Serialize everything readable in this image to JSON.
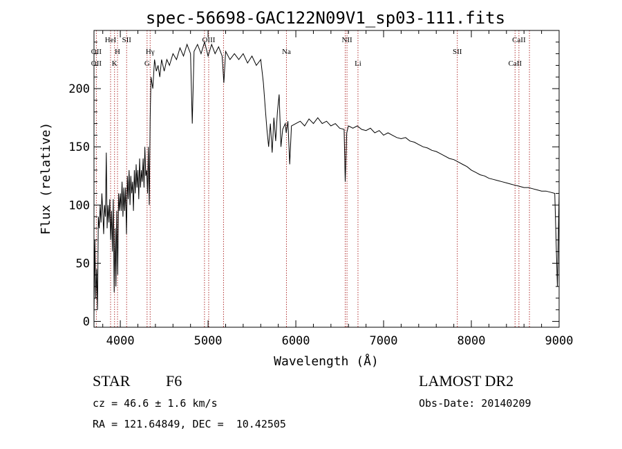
{
  "chart_data": {
    "type": "line",
    "title": "spec-56698-GAC122N09V1_sp03-111.fits",
    "xlabel": "Wavelength (Å)",
    "ylabel": "Flux (relative)",
    "xlim": [
      3700,
      9000
    ],
    "ylim": [
      -5,
      250
    ],
    "xticks": [
      4000,
      5000,
      6000,
      7000,
      8000,
      9000
    ],
    "yticks": [
      0,
      50,
      100,
      150,
      200
    ],
    "grid": false,
    "series": [
      {
        "points": [
          [
            3700,
            5
          ],
          [
            3710,
            70
          ],
          [
            3720,
            20
          ],
          [
            3730,
            45
          ],
          [
            3740,
            10
          ],
          [
            3750,
            90
          ],
          [
            3760,
            80
          ],
          [
            3770,
            100
          ],
          [
            3780,
            85
          ],
          [
            3790,
            110
          ],
          [
            3800,
            95
          ],
          [
            3810,
            75
          ],
          [
            3820,
            100
          ],
          [
            3830,
            90
          ],
          [
            3840,
            145
          ],
          [
            3850,
            80
          ],
          [
            3860,
            100
          ],
          [
            3870,
            85
          ],
          [
            3880,
            105
          ],
          [
            3890,
            70
          ],
          [
            3900,
            95
          ],
          [
            3910,
            60
          ],
          [
            3920,
            105
          ],
          [
            3930,
            25
          ],
          [
            3940,
            80
          ],
          [
            3950,
            30
          ],
          [
            3960,
            95
          ],
          [
            3970,
            40
          ],
          [
            3980,
            110
          ],
          [
            3990,
            95
          ],
          [
            4000,
            110
          ],
          [
            4010,
            95
          ],
          [
            4020,
            120
          ],
          [
            4030,
            90
          ],
          [
            4040,
            115
          ],
          [
            4050,
            95
          ],
          [
            4060,
            115
          ],
          [
            4070,
            75
          ],
          [
            4080,
            125
          ],
          [
            4090,
            105
          ],
          [
            4100,
            130
          ],
          [
            4110,
            100
          ],
          [
            4120,
            125
          ],
          [
            4130,
            110
          ],
          [
            4140,
            120
          ],
          [
            4150,
            95
          ],
          [
            4160,
            130
          ],
          [
            4170,
            110
          ],
          [
            4180,
            135
          ],
          [
            4190,
            115
          ],
          [
            4200,
            130
          ],
          [
            4210,
            105
          ],
          [
            4220,
            140
          ],
          [
            4230,
            115
          ],
          [
            4240,
            130
          ],
          [
            4250,
            120
          ],
          [
            4260,
            140
          ],
          [
            4270,
            115
          ],
          [
            4280,
            150
          ],
          [
            4290,
            125
          ],
          [
            4300,
            130
          ],
          [
            4310,
            110
          ],
          [
            4320,
            150
          ],
          [
            4330,
            100
          ],
          [
            4340,
            175
          ],
          [
            4350,
            210
          ],
          [
            4370,
            200
          ],
          [
            4390,
            225
          ],
          [
            4410,
            215
          ],
          [
            4430,
            220
          ],
          [
            4450,
            210
          ],
          [
            4470,
            225
          ],
          [
            4500,
            215
          ],
          [
            4530,
            225
          ],
          [
            4560,
            220
          ],
          [
            4600,
            230
          ],
          [
            4640,
            225
          ],
          [
            4680,
            235
          ],
          [
            4720,
            228
          ],
          [
            4760,
            238
          ],
          [
            4800,
            230
          ],
          [
            4820,
            170
          ],
          [
            4840,
            232
          ],
          [
            4880,
            238
          ],
          [
            4920,
            230
          ],
          [
            4960,
            240
          ],
          [
            5000,
            228
          ],
          [
            5040,
            238
          ],
          [
            5080,
            230
          ],
          [
            5120,
            236
          ],
          [
            5160,
            228
          ],
          [
            5180,
            205
          ],
          [
            5200,
            232
          ],
          [
            5250,
            225
          ],
          [
            5300,
            230
          ],
          [
            5350,
            225
          ],
          [
            5400,
            230
          ],
          [
            5450,
            222
          ],
          [
            5500,
            228
          ],
          [
            5550,
            220
          ],
          [
            5600,
            225
          ],
          [
            5630,
            205
          ],
          [
            5650,
            185
          ],
          [
            5670,
            165
          ],
          [
            5690,
            150
          ],
          [
            5710,
            170
          ],
          [
            5730,
            145
          ],
          [
            5750,
            175
          ],
          [
            5770,
            155
          ],
          [
            5790,
            180
          ],
          [
            5810,
            195
          ],
          [
            5830,
            150
          ],
          [
            5850,
            165
          ],
          [
            5880,
            170
          ],
          [
            5890,
            162
          ],
          [
            5910,
            172
          ],
          [
            5930,
            135
          ],
          [
            5950,
            168
          ],
          [
            6000,
            170
          ],
          [
            6050,
            172
          ],
          [
            6100,
            168
          ],
          [
            6150,
            174
          ],
          [
            6200,
            170
          ],
          [
            6250,
            175
          ],
          [
            6300,
            170
          ],
          [
            6350,
            172
          ],
          [
            6400,
            168
          ],
          [
            6450,
            170
          ],
          [
            6500,
            166
          ],
          [
            6550,
            165
          ],
          [
            6563,
            120
          ],
          [
            6580,
            162
          ],
          [
            6600,
            168
          ],
          [
            6650,
            166
          ],
          [
            6700,
            168
          ],
          [
            6750,
            165
          ],
          [
            6800,
            164
          ],
          [
            6850,
            166
          ],
          [
            6900,
            162
          ],
          [
            6950,
            164
          ],
          [
            7000,
            160
          ],
          [
            7050,
            162
          ],
          [
            7100,
            160
          ],
          [
            7150,
            158
          ],
          [
            7200,
            157
          ],
          [
            7250,
            158
          ],
          [
            7300,
            155
          ],
          [
            7350,
            154
          ],
          [
            7400,
            152
          ],
          [
            7450,
            150
          ],
          [
            7500,
            149
          ],
          [
            7550,
            147
          ],
          [
            7600,
            146
          ],
          [
            7650,
            144
          ],
          [
            7700,
            142
          ],
          [
            7750,
            140
          ],
          [
            7800,
            139
          ],
          [
            7850,
            137
          ],
          [
            7900,
            135
          ],
          [
            7950,
            133
          ],
          [
            8000,
            130
          ],
          [
            8050,
            128
          ],
          [
            8100,
            126
          ],
          [
            8150,
            125
          ],
          [
            8200,
            123
          ],
          [
            8250,
            122
          ],
          [
            8300,
            121
          ],
          [
            8350,
            120
          ],
          [
            8400,
            119
          ],
          [
            8450,
            118
          ],
          [
            8500,
            117
          ],
          [
            8550,
            116
          ],
          [
            8600,
            115
          ],
          [
            8650,
            115
          ],
          [
            8700,
            114
          ],
          [
            8750,
            113
          ],
          [
            8800,
            112
          ],
          [
            8850,
            112
          ],
          [
            8900,
            111
          ],
          [
            8950,
            110
          ],
          [
            8980,
            30
          ],
          [
            9000,
            110
          ]
        ]
      }
    ],
    "spectral_lines": [
      {
        "label": "OII",
        "x": 3727,
        "row": "top"
      },
      {
        "label": "OII",
        "x": 3727,
        "row": "bottom"
      },
      {
        "label": "HeI",
        "x": 3889,
        "row": "upper"
      },
      {
        "label": "H",
        "x": 3968,
        "row": "top"
      },
      {
        "label": "K",
        "x": 3934,
        "row": "bottom"
      },
      {
        "label": "SII",
        "x": 4072,
        "row": "upper"
      },
      {
        "label": "Hγ",
        "x": 4340,
        "row": "top"
      },
      {
        "label": "G",
        "x": 4305,
        "row": "bottom"
      },
      {
        "label": "OIII",
        "x": 5007,
        "row": "upper"
      },
      {
        "label": "Na",
        "x": 5893,
        "row": "top"
      },
      {
        "label": "NII",
        "x": 6583,
        "row": "upper"
      },
      {
        "label": "Li",
        "x": 6708,
        "row": "bottom"
      },
      {
        "label": "SII",
        "x": 7840,
        "row": "top"
      },
      {
        "label": "CaII",
        "x": 8542,
        "row": "upper"
      },
      {
        "label": "CaII",
        "x": 8498,
        "row": "bottom"
      }
    ],
    "line_markers": [
      3727,
      3889,
      3934,
      3968,
      4072,
      4305,
      4340,
      4959,
      5007,
      5176,
      5893,
      6563,
      6583,
      6708,
      7840,
      8498,
      8542,
      8662
    ]
  },
  "info": {
    "object_class": "STAR",
    "subclass": "F6",
    "survey": "LAMOST DR2",
    "cz": "cz = 46.6 ± 1.6 km/s",
    "obs_date": "Obs-Date: 20140209",
    "coords": "RA = 121.64849, DEC =  10.42505"
  },
  "colors": {
    "line_markers": "#b03030",
    "spectrum": "#000000"
  }
}
